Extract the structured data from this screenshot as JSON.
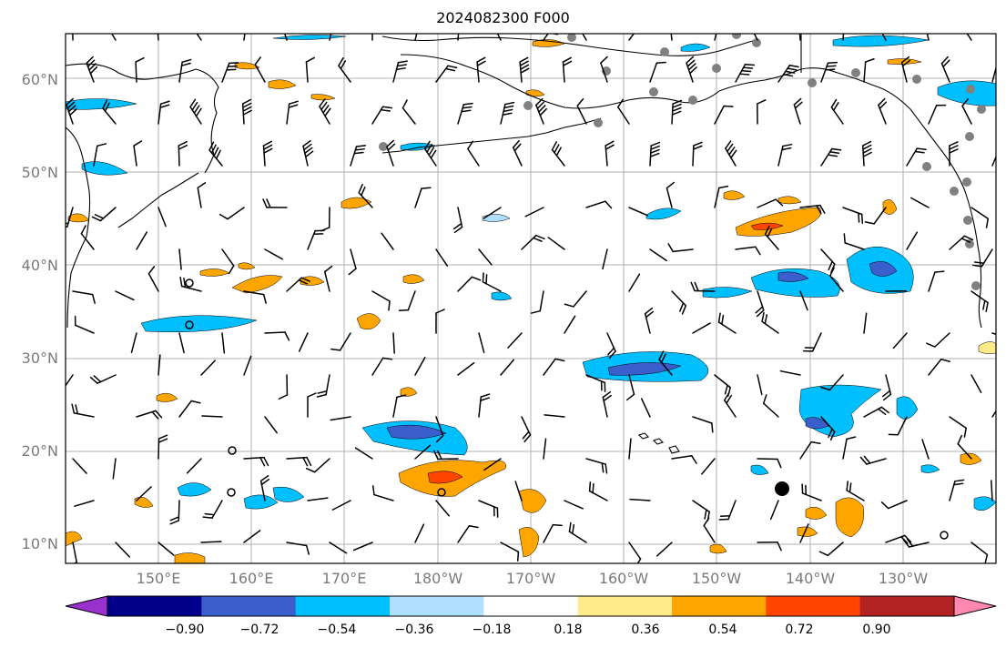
{
  "title": "2024082300 F000",
  "lat_labels": [
    "60°N",
    "50°N",
    "40°N",
    "30°N",
    "20°N",
    "10°N"
  ],
  "lon_labels": [
    "150°E",
    "160°E",
    "170°E",
    "180°W",
    "170°W",
    "160°W",
    "150°W",
    "140°W",
    "130°W"
  ],
  "colorbar": {
    "ticks": [
      "−0.90",
      "−0.72",
      "−0.54",
      "−0.36",
      "−0.18",
      "0.18",
      "0.36",
      "0.54",
      "0.72",
      "0.90"
    ],
    "colors": [
      "#9932cc",
      "#00008b",
      "#3a5fcd",
      "#00bfff",
      "#b0e0ff",
      "#ffffff",
      "#ffeb8a",
      "#ffa500",
      "#ff4500",
      "#b22222",
      "#ff88b0"
    ]
  },
  "colors": {
    "land_outline": "#000000",
    "grid": "#b0b0b0",
    "station_dot": "#808080"
  }
}
